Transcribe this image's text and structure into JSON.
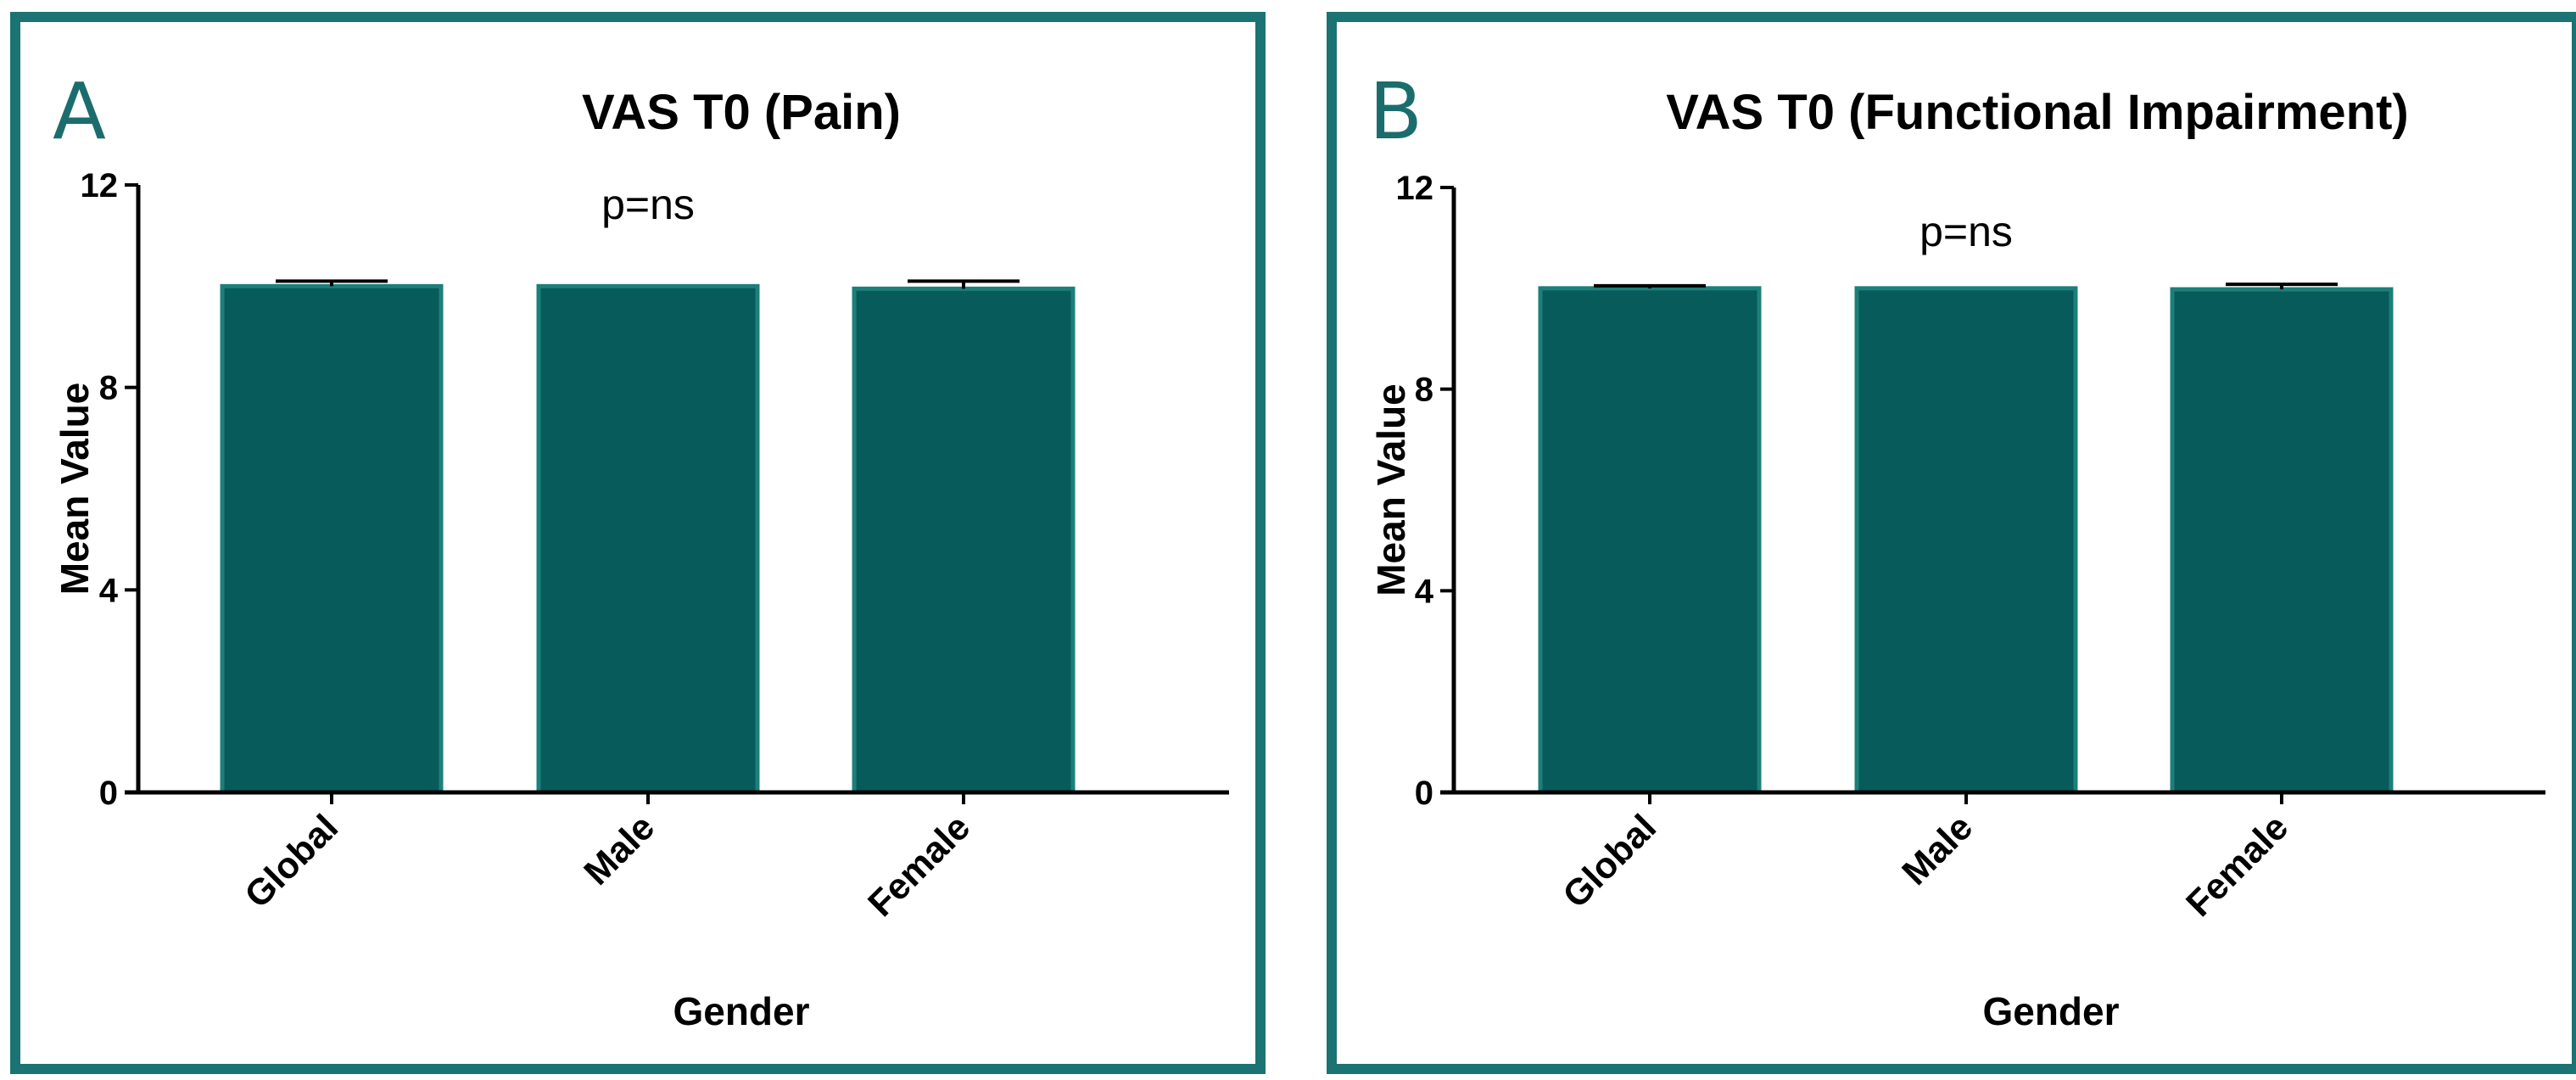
{
  "colors": {
    "bar": "#075b5b",
    "bar_edge": "#1c7f7b",
    "frame": "#1b7373",
    "letter": "#1b6d6d"
  },
  "panels": [
    {
      "letter": "A",
      "annotation": "p=ns"
    },
    {
      "letter": "B",
      "annotation": "p=ns"
    }
  ],
  "chart_data": [
    {
      "type": "bar",
      "title": "VAS T0 (Pain)",
      "xlabel": "Gender",
      "ylabel": "Mean Value",
      "categories": [
        "Global",
        "Male",
        "Female"
      ],
      "values": [
        10.0,
        10.0,
        9.95
      ],
      "errors": [
        0.1,
        0.0,
        0.15
      ],
      "ylim": [
        0,
        12
      ],
      "yticks": [
        0,
        4,
        8,
        12
      ],
      "ytick_labels": [
        "0",
        "4",
        "8",
        "12"
      ]
    },
    {
      "type": "bar",
      "title": "VAS T0 (Functional Impairment)",
      "xlabel": "Gender",
      "ylabel": "Mean Value",
      "categories": [
        "Global",
        "Male",
        "Female"
      ],
      "values": [
        10.0,
        10.0,
        9.98
      ],
      "errors": [
        0.05,
        0.0,
        0.1
      ],
      "ylim": [
        0,
        12
      ],
      "yticks": [
        0,
        4,
        8,
        12
      ],
      "ytick_labels": [
        "0",
        "4",
        "8",
        "12"
      ]
    }
  ]
}
